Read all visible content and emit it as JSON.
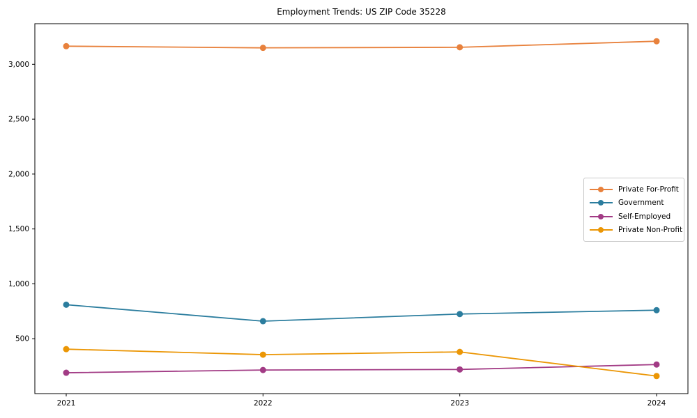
{
  "chart_data": {
    "type": "line",
    "title": "Employment Trends: US ZIP Code 35228",
    "xlabel": "",
    "ylabel": "",
    "x": [
      2021,
      2022,
      2023,
      2024
    ],
    "xtick_labels": [
      "2021",
      "2022",
      "2023",
      "2024"
    ],
    "yticks": [
      500,
      1000,
      1500,
      2000,
      2500,
      3000
    ],
    "ytick_labels": [
      "500",
      "1,000",
      "1,500",
      "2,000",
      "2,500",
      "3,000"
    ],
    "ylim": [
      0,
      3370
    ],
    "grid": false,
    "marker": "circle",
    "legend_position": "center right",
    "background_color": "#ffffff",
    "axis_color": "#000000",
    "series": [
      {
        "name": "Private For-Profit",
        "color": "#e8813c",
        "values": [
          3165,
          3150,
          3155,
          3210
        ]
      },
      {
        "name": "Government",
        "color": "#2b7d9e",
        "values": [
          810,
          660,
          725,
          760
        ]
      },
      {
        "name": "Self-Employed",
        "color": "#a23b85",
        "values": [
          190,
          215,
          220,
          265
        ]
      },
      {
        "name": "Private Non-Profit",
        "color": "#eb9605",
        "values": [
          405,
          355,
          380,
          160
        ]
      }
    ]
  }
}
